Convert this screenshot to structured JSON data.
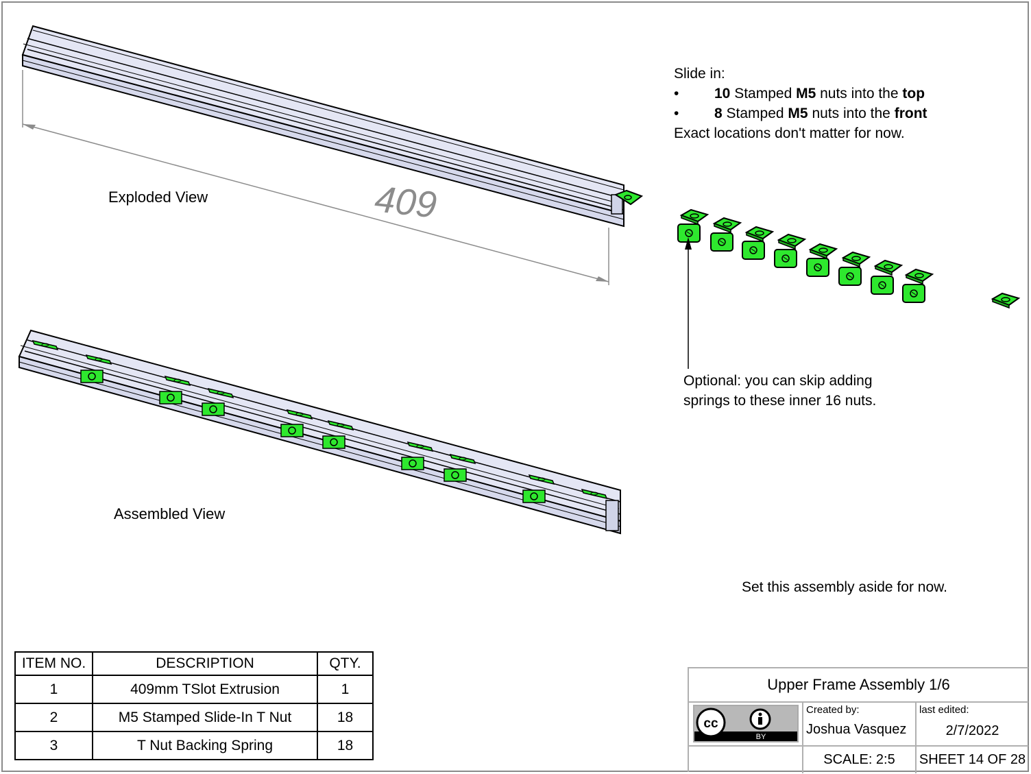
{
  "views": {
    "exploded_label": "Exploded View",
    "assembled_label": "Assembled View",
    "dimension": "409"
  },
  "notes": {
    "intro": "Slide in:",
    "bullets": [
      {
        "dot": "•",
        "qty": "10",
        "pre": " Stamped ",
        "size": "M5",
        "mid": " nuts into the ",
        "where": "top"
      },
      {
        "dot": "•",
        "qty": "8",
        "pre": " Stamped ",
        "size": "M5",
        "mid": " nuts into the ",
        "where": "front"
      }
    ],
    "outro": "Exact locations don't matter for now."
  },
  "optional_note": {
    "line1": "Optional: you can skip adding",
    "line2": "springs to these inner 16 nuts."
  },
  "aside_note": "Set this assembly aside for now.",
  "bom": {
    "headers": [
      "ITEM NO.",
      "DESCRIPTION",
      "QTY."
    ],
    "rows": [
      [
        "1",
        "409mm TSlot Extrusion",
        "1"
      ],
      [
        "2",
        "M5 Stamped Slide-In T Nut",
        "18"
      ],
      [
        "3",
        "T Nut Backing Spring",
        "18"
      ]
    ]
  },
  "title_block": {
    "title": "Upper Frame Assembly 1/6",
    "created_by_label": "Created by:",
    "created_by": "Joshua Vasquez",
    "last_edited_label": "last edited:",
    "last_edited": "2/7/2022",
    "scale": "SCALE: 2:5",
    "sheet": "SHEET 14 OF 28",
    "license_by": "BY",
    "license_cc": "cc"
  },
  "colors": {
    "extrusion": "#e4e6f4",
    "extrusion_edge": "#000000",
    "nut": "#2ee82e",
    "dimension": "#8c8c8c"
  }
}
